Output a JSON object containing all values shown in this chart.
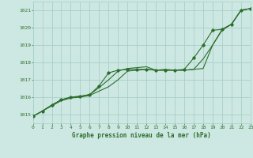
{
  "title": "Graphe pression niveau de la mer (hPa)",
  "background_color": "#cde8e2",
  "grid_color": "#a8cfc8",
  "line_color": "#2d6e2d",
  "xlim": [
    0,
    23
  ],
  "ylim": [
    1014.5,
    1021.5
  ],
  "yticks": [
    1015,
    1016,
    1017,
    1018,
    1019,
    1020,
    1021
  ],
  "xticks": [
    0,
    1,
    2,
    3,
    4,
    5,
    6,
    7,
    8,
    9,
    10,
    11,
    12,
    13,
    14,
    15,
    16,
    17,
    18,
    19,
    20,
    21,
    22,
    23
  ],
  "series1_x": [
    0,
    1,
    2,
    3,
    4,
    5,
    6,
    7,
    8,
    9,
    10,
    11,
    12,
    13,
    14,
    15,
    16,
    17,
    18,
    19,
    20,
    21,
    22,
    23
  ],
  "series1_y": [
    1014.9,
    1015.2,
    1015.5,
    1015.8,
    1015.95,
    1016.0,
    1016.1,
    1016.35,
    1016.6,
    1017.0,
    1017.5,
    1017.55,
    1017.6,
    1017.55,
    1017.55,
    1017.55,
    1017.55,
    1017.6,
    1017.65,
    1019.0,
    1019.85,
    1020.2,
    1021.0,
    1021.1
  ],
  "series2_x": [
    0,
    1,
    2,
    3,
    4,
    5,
    6,
    7,
    8,
    9,
    10,
    11,
    12,
    13,
    14,
    15,
    16,
    17,
    18,
    19,
    20,
    21,
    22,
    23
  ],
  "series2_y": [
    1014.9,
    1015.2,
    1015.55,
    1015.85,
    1016.0,
    1016.05,
    1016.15,
    1016.65,
    1017.4,
    1017.55,
    1017.6,
    1017.6,
    1017.6,
    1017.55,
    1017.55,
    1017.55,
    1017.6,
    1018.25,
    1019.0,
    1019.85,
    1019.9,
    1020.2,
    1021.0,
    1021.1
  ],
  "series3_x": [
    0,
    1,
    2,
    3,
    4,
    5,
    6,
    7,
    8,
    9,
    10,
    11,
    12,
    13,
    14,
    15,
    16,
    17,
    18,
    19,
    20,
    21,
    22,
    23
  ],
  "series3_y": [
    1014.9,
    1015.2,
    1015.55,
    1015.85,
    1016.0,
    1016.05,
    1016.15,
    1016.55,
    1017.0,
    1017.5,
    1017.65,
    1017.7,
    1017.75,
    1017.55,
    1017.6,
    1017.55,
    1017.55,
    1017.6,
    1018.2,
    1019.0,
    1019.9,
    1020.2,
    1021.0,
    1021.1
  ]
}
